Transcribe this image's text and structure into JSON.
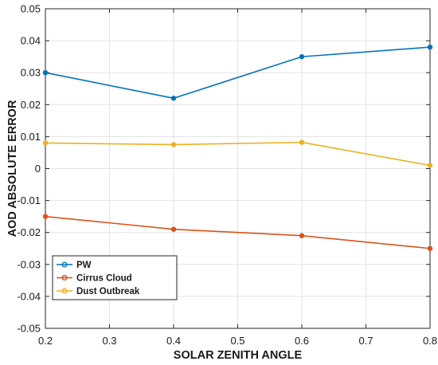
{
  "chart_data": {
    "type": "line",
    "title": "",
    "xlabel": "SOLAR ZENITH ANGLE",
    "ylabel": "AOD ABSOLUTE ERROR",
    "xlim": [
      0.2,
      0.8
    ],
    "ylim": [
      -0.05,
      0.05
    ],
    "xticks": [
      0.2,
      0.3,
      0.4,
      0.5,
      0.6,
      0.7,
      0.8
    ],
    "xtick_labels": [
      "0.2",
      "0.3",
      "0.4",
      "0.5",
      "0.6",
      "0.7",
      "0.8"
    ],
    "yticks": [
      -0.05,
      -0.04,
      -0.03,
      -0.02,
      -0.01,
      0,
      0.01,
      0.02,
      0.03,
      0.04,
      0.05
    ],
    "ytick_labels": [
      "-0.05",
      "-0.04",
      "-0.03",
      "-0.02",
      "-0.01",
      "0",
      "0.01",
      "0.02",
      "0.03",
      "0.04",
      "0.05"
    ],
    "grid": true,
    "legend_position": "lower-left",
    "x": [
      0.2,
      0.4,
      0.6,
      0.8
    ],
    "series": [
      {
        "name": "PW",
        "color": "#0072BD",
        "values": [
          0.03,
          0.022,
          0.035,
          0.038
        ]
      },
      {
        "name": "Cirrus Cloud",
        "color": "#D95319",
        "values": [
          -0.015,
          -0.019,
          -0.021,
          -0.025
        ]
      },
      {
        "name": "Dust Outbreak",
        "color": "#EDB120",
        "values": [
          0.008,
          0.0075,
          0.0082,
          0.001
        ]
      }
    ]
  }
}
